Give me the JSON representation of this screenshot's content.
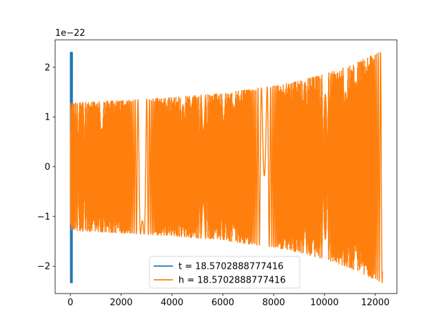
{
  "chart_data": {
    "type": "line",
    "title": "",
    "xlabel": "",
    "ylabel": "",
    "xlim": [
      -600,
      12850
    ],
    "ylim": [
      -2.55,
      2.55
    ],
    "x_ticks": [
      0,
      2000,
      4000,
      6000,
      8000,
      10000,
      12000
    ],
    "x_tick_labels": [
      "0",
      "2000",
      "4000",
      "6000",
      "8000",
      "10000",
      "12000"
    ],
    "y_ticks": [
      -2,
      -1,
      0,
      1,
      2
    ],
    "y_tick_labels": [
      "−2",
      "−1",
      "0",
      "1",
      "2"
    ],
    "y_offset_label": "1e−22",
    "legend_position": "lower center",
    "grid": false,
    "series": [
      {
        "name": "t = 18.5702888777416",
        "color": "#1f77b4",
        "kind": "spike",
        "x_range": [
          0,
          80
        ],
        "peak": 2.3,
        "trough": -2.33
      },
      {
        "name": "h = 18.5702888777416",
        "color": "#ff7f0e",
        "kind": "chirp",
        "x_range": [
          0,
          12280
        ],
        "envelope_x": [
          0,
          2000,
          4000,
          6000,
          8000,
          9000,
          10000,
          11000,
          12000,
          12280
        ],
        "envelope_amplitude": [
          1.28,
          1.33,
          1.39,
          1.48,
          1.62,
          1.72,
          1.86,
          2.03,
          2.27,
          2.33
        ]
      }
    ]
  }
}
